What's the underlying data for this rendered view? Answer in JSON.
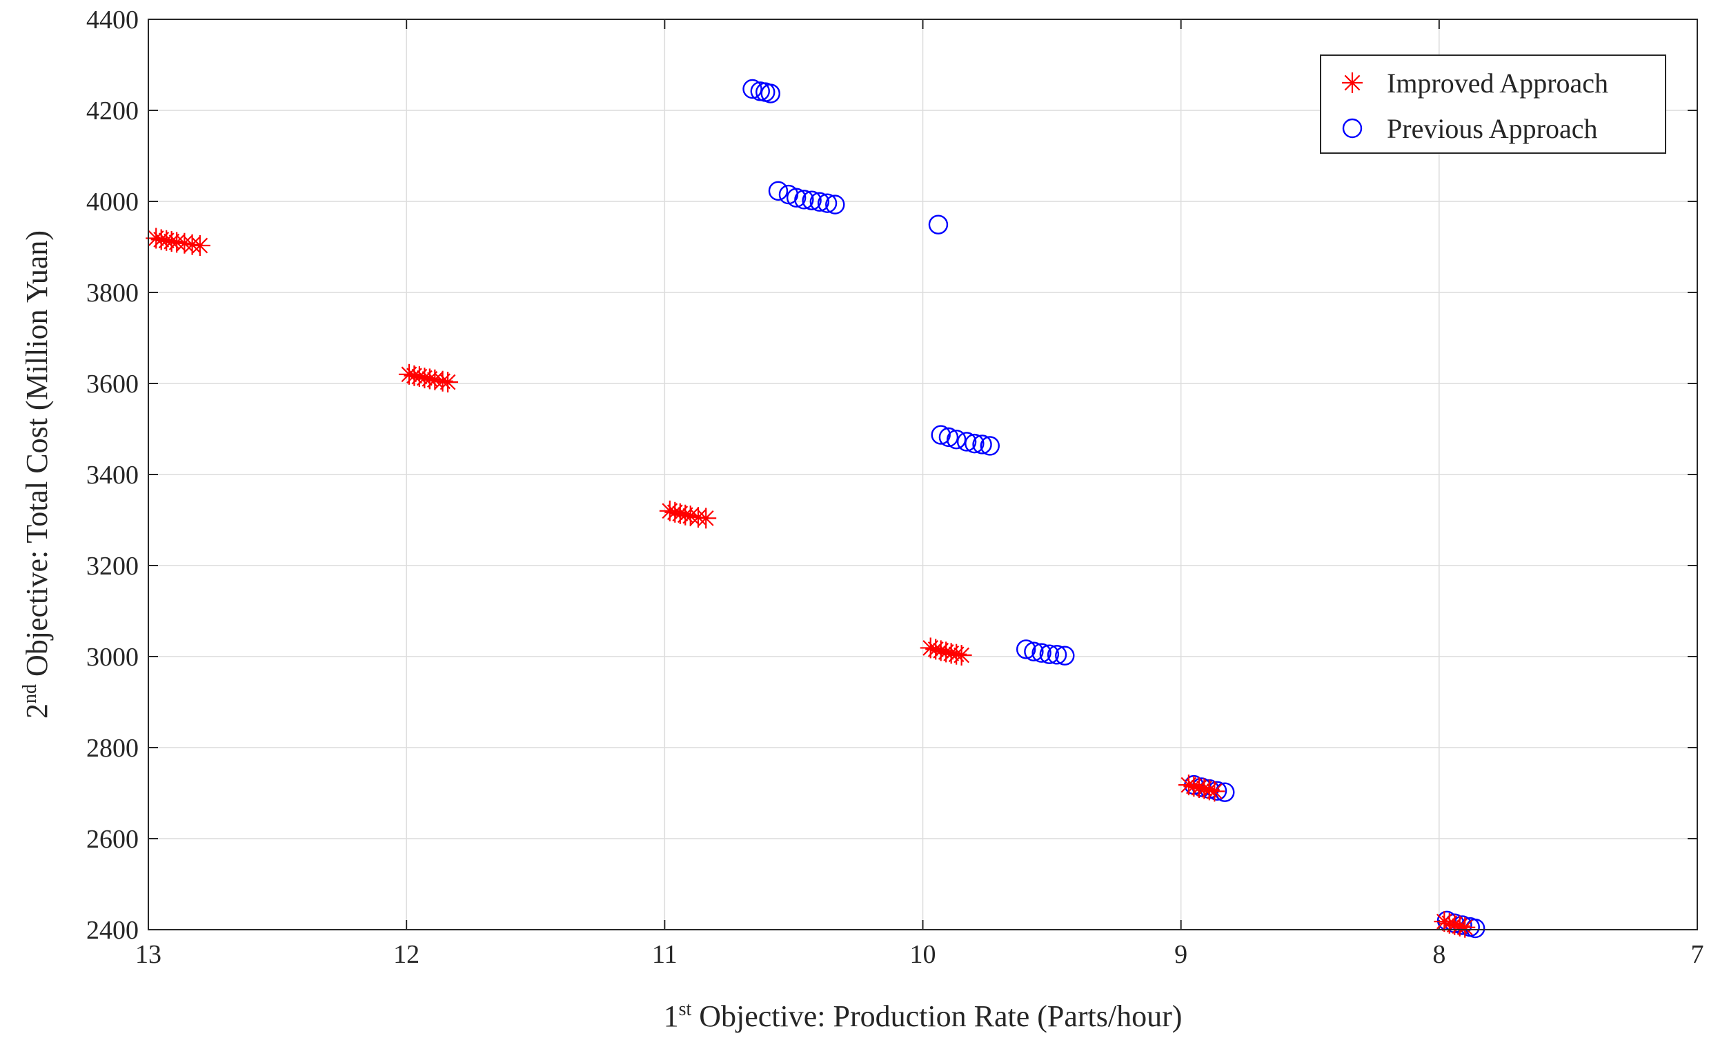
{
  "chart_data": {
    "type": "scatter",
    "title": "",
    "xlabel": {
      "prefix": "1",
      "sup": "st",
      "text": " Objective: Production Rate (Parts/hour)"
    },
    "ylabel": {
      "prefix": "2",
      "sup": "nd",
      "text": " Objective: Total Cost (Million Yuan)"
    },
    "xlim": [
      13,
      7
    ],
    "ylim": [
      2400,
      4400
    ],
    "x_reversed": true,
    "grid": true,
    "legend_position": "top-right",
    "xticks": [
      "13",
      "12",
      "11",
      "10",
      "9",
      "8",
      "7"
    ],
    "yticks": [
      "2400",
      "2600",
      "2800",
      "3000",
      "3200",
      "3400",
      "3600",
      "3800",
      "4000",
      "4200",
      "4400"
    ],
    "series": [
      {
        "name": "Improved Approach",
        "marker": "asterisk",
        "color": "#ff0000",
        "points": [
          [
            12.97,
            3919
          ],
          [
            12.95,
            3916
          ],
          [
            12.93,
            3914
          ],
          [
            12.91,
            3912
          ],
          [
            12.89,
            3910
          ],
          [
            12.86,
            3908
          ],
          [
            12.83,
            3905
          ],
          [
            12.8,
            3903
          ],
          [
            11.99,
            3620
          ],
          [
            11.97,
            3617
          ],
          [
            11.95,
            3615
          ],
          [
            11.93,
            3612
          ],
          [
            11.91,
            3610
          ],
          [
            11.89,
            3608
          ],
          [
            11.86,
            3605
          ],
          [
            11.84,
            3603
          ],
          [
            10.98,
            3320
          ],
          [
            10.96,
            3317
          ],
          [
            10.94,
            3314
          ],
          [
            10.92,
            3311
          ],
          [
            10.9,
            3309
          ],
          [
            10.87,
            3306
          ],
          [
            10.84,
            3304
          ],
          [
            9.97,
            3019
          ],
          [
            9.95,
            3016
          ],
          [
            9.93,
            3013
          ],
          [
            9.91,
            3010
          ],
          [
            9.89,
            3007
          ],
          [
            9.87,
            3005
          ],
          [
            9.85,
            3003
          ],
          [
            8.97,
            2718
          ],
          [
            8.95,
            2715
          ],
          [
            8.93,
            2712
          ],
          [
            8.91,
            2710
          ],
          [
            8.89,
            2707
          ],
          [
            8.87,
            2704
          ],
          [
            7.98,
            2418
          ],
          [
            7.96,
            2414
          ],
          [
            7.94,
            2411
          ],
          [
            7.92,
            2408
          ],
          [
            7.9,
            2405
          ]
        ]
      },
      {
        "name": "Previous Approach",
        "marker": "circle",
        "color": "#0000ff",
        "points": [
          [
            10.66,
            4247
          ],
          [
            10.63,
            4242
          ],
          [
            10.61,
            4240
          ],
          [
            10.59,
            4237
          ],
          [
            10.56,
            4023
          ],
          [
            10.52,
            4015
          ],
          [
            10.49,
            4008
          ],
          [
            10.46,
            4004
          ],
          [
            10.43,
            4002
          ],
          [
            10.4,
            3999
          ],
          [
            10.37,
            3996
          ],
          [
            10.34,
            3993
          ],
          [
            9.94,
            3949
          ],
          [
            9.93,
            3487
          ],
          [
            9.9,
            3482
          ],
          [
            9.87,
            3477
          ],
          [
            9.83,
            3472
          ],
          [
            9.8,
            3468
          ],
          [
            9.77,
            3466
          ],
          [
            9.74,
            3463
          ],
          [
            9.6,
            3016
          ],
          [
            9.57,
            3011
          ],
          [
            9.54,
            3008
          ],
          [
            9.51,
            3005
          ],
          [
            9.48,
            3004
          ],
          [
            9.45,
            3002
          ],
          [
            8.95,
            2718
          ],
          [
            8.92,
            2713
          ],
          [
            8.89,
            2709
          ],
          [
            8.86,
            2705
          ],
          [
            8.83,
            2702
          ],
          [
            7.97,
            2420
          ],
          [
            7.94,
            2414
          ],
          [
            7.91,
            2410
          ],
          [
            7.88,
            2406
          ],
          [
            7.86,
            2403
          ]
        ]
      }
    ]
  }
}
